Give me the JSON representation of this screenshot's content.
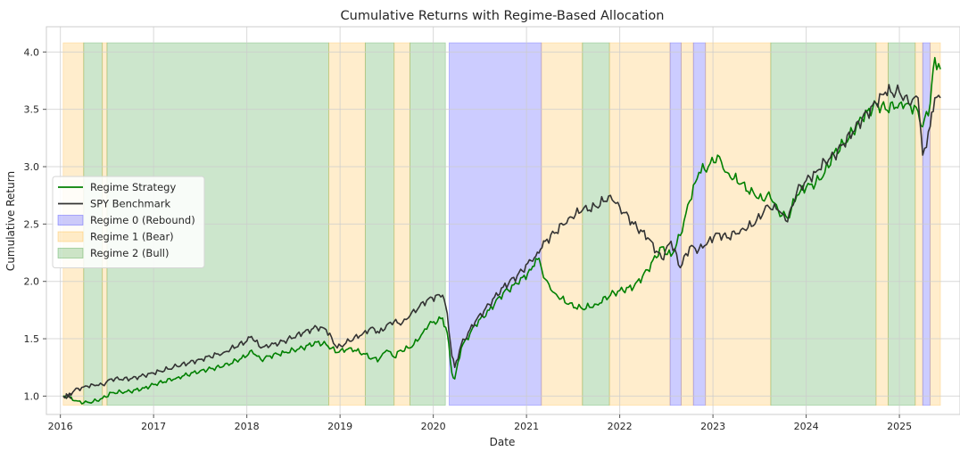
{
  "chart_data": {
    "type": "line",
    "title": "Cumulative Returns with Regime-Based Allocation",
    "xlabel": "Date",
    "ylabel": "Cumulative Return",
    "xlim": [
      2015.85,
      2025.65
    ],
    "ylim": [
      0.84,
      4.22
    ],
    "x_ticks": [
      "2016",
      "2017",
      "2018",
      "2019",
      "2020",
      "2021",
      "2022",
      "2023",
      "2024",
      "2025"
    ],
    "y_ticks": [
      "1.0",
      "1.5",
      "2.0",
      "2.5",
      "3.0",
      "3.5",
      "4.0"
    ],
    "grid": true,
    "legend_position": "center-left",
    "legend": [
      {
        "label": "Regime Strategy",
        "kind": "line",
        "color": "#008000"
      },
      {
        "label": "SPY Benchmark",
        "kind": "line",
        "color": "#333333"
      },
      {
        "label": "Regime 0 (Rebound)",
        "kind": "patch",
        "color": "#0000ff"
      },
      {
        "label": "Regime 1 (Bear)",
        "kind": "patch",
        "color": "#ffa500"
      },
      {
        "label": "Regime 2 (Bull)",
        "kind": "patch",
        "color": "#008000"
      }
    ],
    "regime_colors": {
      "0": "#0000ff",
      "1": "#ffa500",
      "2": "#008000"
    },
    "regimes": [
      {
        "regime": 1,
        "start": 2016.03,
        "end": 2016.25
      },
      {
        "regime": 2,
        "start": 2016.25,
        "end": 2016.45
      },
      {
        "regime": 1,
        "start": 2016.45,
        "end": 2016.5
      },
      {
        "regime": 2,
        "start": 2016.5,
        "end": 2018.88
      },
      {
        "regime": 1,
        "start": 2018.88,
        "end": 2019.27
      },
      {
        "regime": 2,
        "start": 2019.27,
        "end": 2019.58
      },
      {
        "regime": 1,
        "start": 2019.58,
        "end": 2019.75
      },
      {
        "regime": 2,
        "start": 2019.75,
        "end": 2020.13
      },
      {
        "regime": 0,
        "start": 2020.17,
        "end": 2021.16
      },
      {
        "regime": 1,
        "start": 2021.16,
        "end": 2021.6
      },
      {
        "regime": 2,
        "start": 2021.6,
        "end": 2021.89
      },
      {
        "regime": 1,
        "start": 2021.89,
        "end": 2022.54
      },
      {
        "regime": 0,
        "start": 2022.54,
        "end": 2022.66
      },
      {
        "regime": 1,
        "start": 2022.66,
        "end": 2022.79
      },
      {
        "regime": 0,
        "start": 2022.79,
        "end": 2022.92
      },
      {
        "regime": 1,
        "start": 2022.92,
        "end": 2023.62
      },
      {
        "regime": 2,
        "start": 2023.62,
        "end": 2024.75
      },
      {
        "regime": 1,
        "start": 2024.75,
        "end": 2024.88
      },
      {
        "regime": 2,
        "start": 2024.88,
        "end": 2025.17
      },
      {
        "regime": 1,
        "start": 2025.17,
        "end": 2025.25
      },
      {
        "regime": 0,
        "start": 2025.25,
        "end": 2025.33
      },
      {
        "regime": 1,
        "start": 2025.33,
        "end": 2025.44
      }
    ],
    "series": [
      {
        "name": "Regime Strategy",
        "color": "#008000",
        "x": [
          2016.03,
          2016.08,
          2016.15,
          2016.25,
          2016.35,
          2016.45,
          2016.55,
          2016.75,
          2016.9,
          2017.0,
          2017.25,
          2017.5,
          2017.75,
          2018.0,
          2018.05,
          2018.15,
          2018.25,
          2018.4,
          2018.6,
          2018.75,
          2018.85,
          2018.97,
          2019.1,
          2019.25,
          2019.35,
          2019.42,
          2019.5,
          2019.58,
          2019.65,
          2019.75,
          2019.85,
          2019.95,
          2020.1,
          2020.15,
          2020.2,
          2020.23,
          2020.3,
          2020.45,
          2020.6,
          2020.75,
          2020.9,
          2021.05,
          2021.1,
          2021.15,
          2021.2,
          2021.3,
          2021.45,
          2021.6,
          2021.75,
          2021.9,
          2022.0,
          2022.15,
          2022.3,
          2022.45,
          2022.55,
          2022.65,
          2022.75,
          2022.85,
          2022.95,
          2023.05,
          2023.15,
          2023.3,
          2023.45,
          2023.55,
          2023.6,
          2023.7,
          2023.8,
          2023.9,
          2024.0,
          2024.1,
          2024.2,
          2024.3,
          2024.4,
          2024.5,
          2024.6,
          2024.75,
          2024.85,
          2025.0,
          2025.1,
          2025.2,
          2025.25,
          2025.33,
          2025.38,
          2025.44
        ],
        "y": [
          1.0,
          1.0,
          0.96,
          0.94,
          0.95,
          0.98,
          1.03,
          1.04,
          1.07,
          1.1,
          1.16,
          1.22,
          1.26,
          1.35,
          1.4,
          1.32,
          1.35,
          1.38,
          1.42,
          1.47,
          1.45,
          1.38,
          1.42,
          1.37,
          1.33,
          1.32,
          1.4,
          1.34,
          1.4,
          1.42,
          1.5,
          1.62,
          1.68,
          1.55,
          1.2,
          1.15,
          1.42,
          1.62,
          1.75,
          1.9,
          1.98,
          2.1,
          2.2,
          2.15,
          2.02,
          1.9,
          1.8,
          1.76,
          1.8,
          1.88,
          1.92,
          1.95,
          2.1,
          2.3,
          2.22,
          2.4,
          2.7,
          2.95,
          3.0,
          3.1,
          2.95,
          2.85,
          2.75,
          2.7,
          2.78,
          2.62,
          2.55,
          2.75,
          2.82,
          2.85,
          2.95,
          3.12,
          3.2,
          3.3,
          3.42,
          3.55,
          3.5,
          3.55,
          3.55,
          3.48,
          3.35,
          3.55,
          3.95,
          3.85
        ]
      },
      {
        "name": "SPY Benchmark",
        "color": "#333333",
        "x": [
          2016.03,
          2016.08,
          2016.15,
          2016.25,
          2016.35,
          2016.45,
          2016.55,
          2016.75,
          2016.9,
          2017.0,
          2017.25,
          2017.5,
          2017.75,
          2018.0,
          2018.05,
          2018.15,
          2018.25,
          2018.4,
          2018.6,
          2018.75,
          2018.85,
          2018.97,
          2019.1,
          2019.25,
          2019.35,
          2019.42,
          2019.5,
          2019.58,
          2019.65,
          2019.75,
          2019.85,
          2019.95,
          2020.1,
          2020.15,
          2020.2,
          2020.23,
          2020.3,
          2020.45,
          2020.6,
          2020.75,
          2020.9,
          2021.05,
          2021.1,
          2021.15,
          2021.2,
          2021.3,
          2021.45,
          2021.6,
          2021.75,
          2021.9,
          2022.0,
          2022.15,
          2022.3,
          2022.45,
          2022.55,
          2022.65,
          2022.75,
          2022.85,
          2022.95,
          2023.05,
          2023.15,
          2023.3,
          2023.45,
          2023.55,
          2023.6,
          2023.7,
          2023.8,
          2023.9,
          2024.0,
          2024.1,
          2024.2,
          2024.3,
          2024.4,
          2024.5,
          2024.6,
          2024.75,
          2024.85,
          2025.0,
          2025.1,
          2025.2,
          2025.25,
          2025.33,
          2025.38,
          2025.44
        ],
        "y": [
          1.0,
          1.0,
          1.05,
          1.08,
          1.1,
          1.1,
          1.15,
          1.15,
          1.18,
          1.2,
          1.26,
          1.32,
          1.38,
          1.48,
          1.52,
          1.42,
          1.44,
          1.48,
          1.55,
          1.6,
          1.58,
          1.42,
          1.48,
          1.55,
          1.6,
          1.55,
          1.62,
          1.65,
          1.62,
          1.7,
          1.78,
          1.85,
          1.88,
          1.72,
          1.35,
          1.25,
          1.45,
          1.65,
          1.8,
          1.95,
          2.05,
          2.18,
          2.22,
          2.28,
          2.35,
          2.42,
          2.55,
          2.62,
          2.65,
          2.75,
          2.65,
          2.5,
          2.38,
          2.2,
          2.35,
          2.12,
          2.3,
          2.28,
          2.35,
          2.42,
          2.38,
          2.45,
          2.5,
          2.62,
          2.65,
          2.62,
          2.52,
          2.78,
          2.88,
          2.95,
          3.05,
          3.1,
          3.2,
          3.3,
          3.42,
          3.55,
          3.65,
          3.65,
          3.55,
          3.6,
          3.1,
          3.35,
          3.6,
          3.6
        ]
      }
    ]
  }
}
